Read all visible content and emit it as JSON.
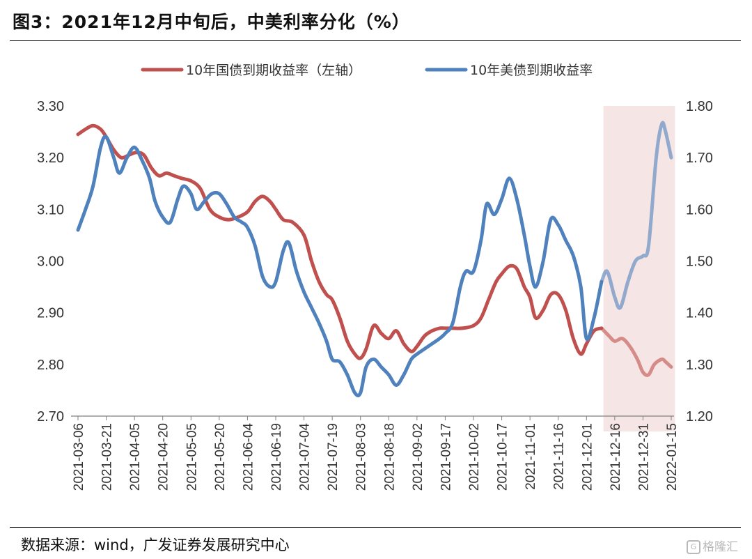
{
  "title": "图3：2021年12月中旬后，中美利率分化（%）",
  "source": "数据来源：wind，广发证券发展研究中心",
  "watermark": "格隆汇",
  "colors": {
    "cn_series": "#c0504d",
    "us_series": "#4f81bd",
    "highlight": "#f2dcdb"
  },
  "chart_data": {
    "type": "line",
    "x_tick_labels": [
      "2021-03-06",
      "2021-03-21",
      "2021-04-05",
      "2021-04-20",
      "2021-05-05",
      "2021-05-20",
      "2021-06-04",
      "2021-06-19",
      "2021-07-04",
      "2021-07-19",
      "2021-08-03",
      "2021-08-18",
      "2021-09-02",
      "2021-09-17",
      "2021-10-02",
      "2021-10-17",
      "2021-11-01",
      "2021-11-16",
      "2021-12-01",
      "2021-12-16",
      "2021-12-31",
      "2022-01-15"
    ],
    "x_range": [
      "2021-03-06",
      "2022-01-15"
    ],
    "y_left": {
      "range": [
        2.7,
        3.3
      ],
      "ticks": [
        "2.70",
        "2.80",
        "2.90",
        "3.00",
        "3.10",
        "3.20",
        "3.30"
      ]
    },
    "y_right": {
      "range": [
        1.2,
        1.8
      ],
      "ticks": [
        "1.20",
        "1.30",
        "1.40",
        "1.50",
        "1.60",
        "1.70",
        "1.80"
      ]
    },
    "legend_position": "top",
    "highlight_region": {
      "start": "2021-12-10",
      "end": "2022-01-17"
    },
    "series": [
      {
        "name": "10年国债到期收益率（左轴）",
        "axis": "left",
        "points": [
          [
            "2021-03-06",
            3.245
          ],
          [
            "2021-03-10",
            3.255
          ],
          [
            "2021-03-14",
            3.262
          ],
          [
            "2021-03-18",
            3.255
          ],
          [
            "2021-03-21",
            3.24
          ],
          [
            "2021-03-25",
            3.215
          ],
          [
            "2021-03-29",
            3.2
          ],
          [
            "2021-04-02",
            3.205
          ],
          [
            "2021-04-06",
            3.21
          ],
          [
            "2021-04-10",
            3.205
          ],
          [
            "2021-04-14",
            3.18
          ],
          [
            "2021-04-18",
            3.165
          ],
          [
            "2021-04-22",
            3.17
          ],
          [
            "2021-04-26",
            3.165
          ],
          [
            "2021-04-30",
            3.16
          ],
          [
            "2021-05-05",
            3.155
          ],
          [
            "2021-05-10",
            3.14
          ],
          [
            "2021-05-15",
            3.1
          ],
          [
            "2021-05-20",
            3.085
          ],
          [
            "2021-05-25",
            3.08
          ],
          [
            "2021-05-30",
            3.085
          ],
          [
            "2021-06-04",
            3.095
          ],
          [
            "2021-06-08",
            3.115
          ],
          [
            "2021-06-12",
            3.125
          ],
          [
            "2021-06-16",
            3.115
          ],
          [
            "2021-06-19",
            3.1
          ],
          [
            "2021-06-23",
            3.08
          ],
          [
            "2021-06-28",
            3.075
          ],
          [
            "2021-07-04",
            3.05
          ],
          [
            "2021-07-08",
            3.0
          ],
          [
            "2021-07-12",
            2.96
          ],
          [
            "2021-07-16",
            2.935
          ],
          [
            "2021-07-19",
            2.925
          ],
          [
            "2021-07-23",
            2.89
          ],
          [
            "2021-07-27",
            2.845
          ],
          [
            "2021-07-31",
            2.82
          ],
          [
            "2021-08-03",
            2.812
          ],
          [
            "2021-08-06",
            2.83
          ],
          [
            "2021-08-10",
            2.875
          ],
          [
            "2021-08-14",
            2.86
          ],
          [
            "2021-08-18",
            2.85
          ],
          [
            "2021-08-22",
            2.865
          ],
          [
            "2021-08-26",
            2.84
          ],
          [
            "2021-08-30",
            2.825
          ],
          [
            "2021-09-02",
            2.835
          ],
          [
            "2021-09-06",
            2.855
          ],
          [
            "2021-09-10",
            2.865
          ],
          [
            "2021-09-14",
            2.87
          ],
          [
            "2021-09-17",
            2.87
          ],
          [
            "2021-09-21",
            2.87
          ],
          [
            "2021-09-26",
            2.87
          ],
          [
            "2021-10-02",
            2.875
          ],
          [
            "2021-10-06",
            2.89
          ],
          [
            "2021-10-10",
            2.925
          ],
          [
            "2021-10-14",
            2.96
          ],
          [
            "2021-10-17",
            2.975
          ],
          [
            "2021-10-21",
            2.99
          ],
          [
            "2021-10-25",
            2.985
          ],
          [
            "2021-10-29",
            2.95
          ],
          [
            "2021-11-01",
            2.93
          ],
          [
            "2021-11-04",
            2.89
          ],
          [
            "2021-11-08",
            2.905
          ],
          [
            "2021-11-12",
            2.935
          ],
          [
            "2021-11-16",
            2.935
          ],
          [
            "2021-11-20",
            2.905
          ],
          [
            "2021-11-24",
            2.85
          ],
          [
            "2021-11-28",
            2.82
          ],
          [
            "2021-12-01",
            2.84
          ],
          [
            "2021-12-05",
            2.865
          ],
          [
            "2021-12-09",
            2.87
          ],
          [
            "2021-12-13",
            2.855
          ],
          [
            "2021-12-16",
            2.845
          ],
          [
            "2021-12-20",
            2.85
          ],
          [
            "2021-12-24",
            2.835
          ],
          [
            "2021-12-28",
            2.81
          ],
          [
            "2021-12-31",
            2.785
          ],
          [
            "2022-01-03",
            2.78
          ],
          [
            "2022-01-06",
            2.8
          ],
          [
            "2022-01-10",
            2.81
          ],
          [
            "2022-01-12",
            2.805
          ],
          [
            "2022-01-15",
            2.795
          ]
        ]
      },
      {
        "name": "10年美债到期收益率",
        "axis": "right",
        "points": [
          [
            "2021-03-06",
            1.56
          ],
          [
            "2021-03-10",
            1.6
          ],
          [
            "2021-03-14",
            1.645
          ],
          [
            "2021-03-18",
            1.72
          ],
          [
            "2021-03-21",
            1.74
          ],
          [
            "2021-03-25",
            1.7
          ],
          [
            "2021-03-28",
            1.67
          ],
          [
            "2021-04-01",
            1.7
          ],
          [
            "2021-04-05",
            1.72
          ],
          [
            "2021-04-09",
            1.695
          ],
          [
            "2021-04-13",
            1.66
          ],
          [
            "2021-04-16",
            1.615
          ],
          [
            "2021-04-20",
            1.585
          ],
          [
            "2021-04-24",
            1.575
          ],
          [
            "2021-04-28",
            1.62
          ],
          [
            "2021-05-01",
            1.645
          ],
          [
            "2021-05-05",
            1.63
          ],
          [
            "2021-05-08",
            1.6
          ],
          [
            "2021-05-12",
            1.615
          ],
          [
            "2021-05-16",
            1.63
          ],
          [
            "2021-05-20",
            1.63
          ],
          [
            "2021-05-24",
            1.61
          ],
          [
            "2021-05-28",
            1.585
          ],
          [
            "2021-06-01",
            1.575
          ],
          [
            "2021-06-04",
            1.565
          ],
          [
            "2021-06-08",
            1.53
          ],
          [
            "2021-06-12",
            1.47
          ],
          [
            "2021-06-16",
            1.45
          ],
          [
            "2021-06-19",
            1.46
          ],
          [
            "2021-06-23",
            1.52
          ],
          [
            "2021-06-26",
            1.535
          ],
          [
            "2021-06-30",
            1.48
          ],
          [
            "2021-07-04",
            1.44
          ],
          [
            "2021-07-08",
            1.41
          ],
          [
            "2021-07-12",
            1.38
          ],
          [
            "2021-07-16",
            1.345
          ],
          [
            "2021-07-19",
            1.31
          ],
          [
            "2021-07-23",
            1.305
          ],
          [
            "2021-07-27",
            1.28
          ],
          [
            "2021-07-31",
            1.245
          ],
          [
            "2021-08-03",
            1.245
          ],
          [
            "2021-08-06",
            1.295
          ],
          [
            "2021-08-10",
            1.31
          ],
          [
            "2021-08-14",
            1.295
          ],
          [
            "2021-08-18",
            1.28
          ],
          [
            "2021-08-22",
            1.26
          ],
          [
            "2021-08-26",
            1.28
          ],
          [
            "2021-08-30",
            1.31
          ],
          [
            "2021-09-02",
            1.32
          ],
          [
            "2021-09-06",
            1.33
          ],
          [
            "2021-09-10",
            1.34
          ],
          [
            "2021-09-14",
            1.35
          ],
          [
            "2021-09-17",
            1.36
          ],
          [
            "2021-09-21",
            1.38
          ],
          [
            "2021-09-25",
            1.45
          ],
          [
            "2021-09-28",
            1.48
          ],
          [
            "2021-10-02",
            1.48
          ],
          [
            "2021-10-06",
            1.54
          ],
          [
            "2021-10-09",
            1.61
          ],
          [
            "2021-10-13",
            1.59
          ],
          [
            "2021-10-17",
            1.62
          ],
          [
            "2021-10-21",
            1.66
          ],
          [
            "2021-10-25",
            1.62
          ],
          [
            "2021-10-29",
            1.55
          ],
          [
            "2021-11-01",
            1.49
          ],
          [
            "2021-11-04",
            1.45
          ],
          [
            "2021-11-08",
            1.5
          ],
          [
            "2021-11-12",
            1.58
          ],
          [
            "2021-11-16",
            1.57
          ],
          [
            "2021-11-20",
            1.54
          ],
          [
            "2021-11-24",
            1.51
          ],
          [
            "2021-11-28",
            1.45
          ],
          [
            "2021-12-01",
            1.35
          ],
          [
            "2021-12-05",
            1.39
          ],
          [
            "2021-12-09",
            1.46
          ],
          [
            "2021-12-12",
            1.48
          ],
          [
            "2021-12-16",
            1.43
          ],
          [
            "2021-12-19",
            1.41
          ],
          [
            "2021-12-23",
            1.46
          ],
          [
            "2021-12-27",
            1.5
          ],
          [
            "2021-12-31",
            1.51
          ],
          [
            "2022-01-03",
            1.53
          ],
          [
            "2022-01-07",
            1.7
          ],
          [
            "2022-01-10",
            1.765
          ],
          [
            "2022-01-12",
            1.75
          ],
          [
            "2022-01-15",
            1.7
          ]
        ]
      }
    ]
  }
}
